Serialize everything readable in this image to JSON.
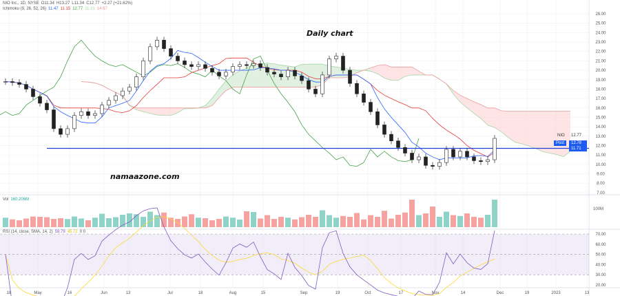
{
  "header": {
    "symbol_line": "NIO Inc., 1D, NYSE",
    "open": "O11.34",
    "high": "H13.27",
    "low": "L11.34",
    "close": "C12.77",
    "change": "+2.27 (+21.62%)",
    "ichimoku_label": "Ichimoku (9, 26, 52, 26)",
    "ichimoku_values": [
      "11.47",
      "11.15",
      "12.77",
      "11.31",
      "14.67"
    ]
  },
  "annotations": {
    "title": "Daily chart",
    "watermark": "namaazone.com"
  },
  "price_tags": {
    "symbol": "NIO",
    "last": "12.77",
    "post_label": "Post",
    "post": "12.78",
    "line_value": "11.71"
  },
  "volume": {
    "label": "Vol",
    "value": "160.206M",
    "axis_label": "100M"
  },
  "rsi": {
    "label": "RSI (14, close, SMA, 14, 2)",
    "value": "59.79",
    "sma": "45.72",
    "extra": "0 0"
  },
  "colors": {
    "up": "#26a69a",
    "down": "#ef5350",
    "tenkan": "#2962ff",
    "kijun": "#e53935",
    "chikou": "#43a047",
    "cloud_up": "#c8e6c9",
    "cloud_down": "#ffcdd2",
    "hline": "#1e3fd8",
    "rsi": "#7e57c2",
    "rsi_sma": "#fdd835"
  },
  "chart_data": {
    "type": "candlestick",
    "title": "Daily chart",
    "ylim": [
      7,
      26
    ],
    "price_ticks": [
      "26.00",
      "25.00",
      "24.00",
      "23.00",
      "22.00",
      "21.00",
      "20.00",
      "19.00",
      "18.00",
      "17.00",
      "16.00",
      "15.00",
      "14.00",
      "13.00",
      "12.00",
      "11.00",
      "10.00",
      "9.00",
      "8.00",
      "7.00"
    ],
    "rsi_ticks": [
      "70.00",
      "60.00",
      "50.00",
      "40.00",
      "30.00",
      "20.00"
    ],
    "time_ticks": [
      "18",
      "May",
      "16",
      "Jun",
      "13",
      "Jul",
      "18",
      "Aug",
      "15",
      "Sep",
      "19",
      "Oct",
      "17",
      "Nov",
      "14",
      "Dec",
      "19",
      "2023",
      "13"
    ],
    "horizontal_line": 11.71,
    "closes": [
      18.8,
      18.7,
      18.5,
      18,
      17.2,
      16.5,
      15.8,
      13.8,
      13.2,
      13.8,
      15.2,
      15.6,
      15.2,
      15.4,
      16.3,
      16.8,
      17.3,
      17.8,
      18.2,
      19.3,
      21,
      22.5,
      23.2,
      22.3,
      21.5,
      21,
      20.6,
      20.4,
      20.6,
      20.2,
      19.8,
      19.4,
      19.8,
      20.4,
      20.6,
      20.5,
      20.7,
      20.3,
      19.8,
      19.6,
      19.3,
      20,
      19.4,
      18.9,
      18,
      17.5,
      19.5,
      21.2,
      21.5,
      20,
      18.6,
      17.5,
      16.6,
      15.6,
      14.2,
      13.2,
      12.5,
      11.8,
      11.2,
      10.5,
      10.8,
      9.9,
      9.8,
      10.2,
      11.6,
      10.8,
      11.4,
      10.8,
      10.4,
      10.3,
      10.5,
      12.77
    ],
    "volumes_m": [
      55,
      45,
      40,
      50,
      62,
      60,
      58,
      48,
      52,
      47,
      62,
      50,
      40,
      55,
      78,
      52,
      58,
      72,
      80,
      75,
      60,
      90,
      70,
      85,
      55,
      48,
      62,
      75,
      55,
      52,
      40,
      48,
      62,
      55,
      44,
      92,
      88,
      50,
      70,
      48,
      60,
      55,
      45,
      58,
      72,
      60,
      98,
      70,
      55,
      65,
      60,
      82,
      45,
      70,
      60,
      95,
      50,
      72,
      85,
      160,
      70,
      80,
      120,
      60,
      90,
      70,
      65,
      80,
      60,
      55,
      72,
      160
    ]
  }
}
